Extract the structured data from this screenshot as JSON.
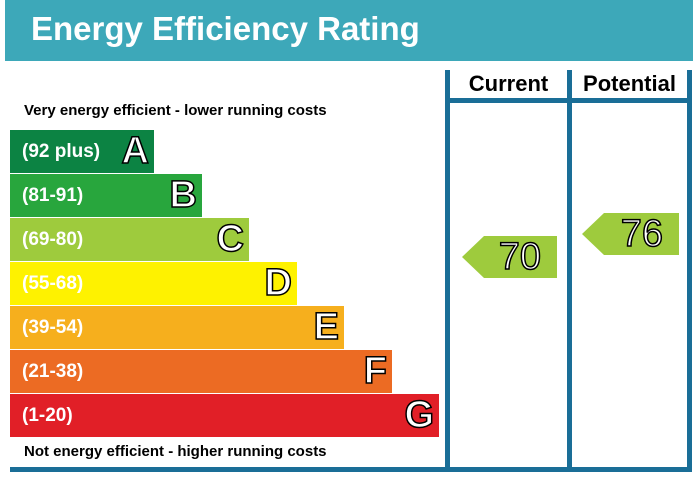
{
  "header": {
    "title": "Energy Efficiency Rating"
  },
  "captions": {
    "top": "Very energy efficient - lower running costs",
    "bottom": "Not energy efficient - higher running costs"
  },
  "columns": {
    "current": "Current",
    "potential": "Potential"
  },
  "colors": {
    "header": "#3da8b9",
    "grid": "#1a6e97",
    "A": "#0c8343",
    "B": "#28a63d",
    "C": "#9ecb3d",
    "D": "#fef200",
    "E": "#f6af1d",
    "F": "#ec6b23",
    "G": "#e11f27"
  },
  "chart_data": {
    "type": "bar",
    "categories": [
      "A",
      "B",
      "C",
      "D",
      "E",
      "F",
      "G"
    ],
    "bands": [
      {
        "letter": "A",
        "range": "(92 plus)",
        "min": 92,
        "max": 100
      },
      {
        "letter": "B",
        "range": "(81-91)",
        "min": 81,
        "max": 91
      },
      {
        "letter": "C",
        "range": "(69-80)",
        "min": 69,
        "max": 80
      },
      {
        "letter": "D",
        "range": "(55-68)",
        "min": 55,
        "max": 68
      },
      {
        "letter": "E",
        "range": "(39-54)",
        "min": 39,
        "max": 54
      },
      {
        "letter": "F",
        "range": "(21-38)",
        "min": 21,
        "max": 38
      },
      {
        "letter": "G",
        "range": "(1-20)",
        "min": 1,
        "max": 20
      }
    ],
    "series": [
      {
        "name": "Current",
        "value": 70,
        "label": "70",
        "band": "C"
      },
      {
        "name": "Potential",
        "value": 76,
        "label": "76",
        "band": "C"
      }
    ]
  }
}
